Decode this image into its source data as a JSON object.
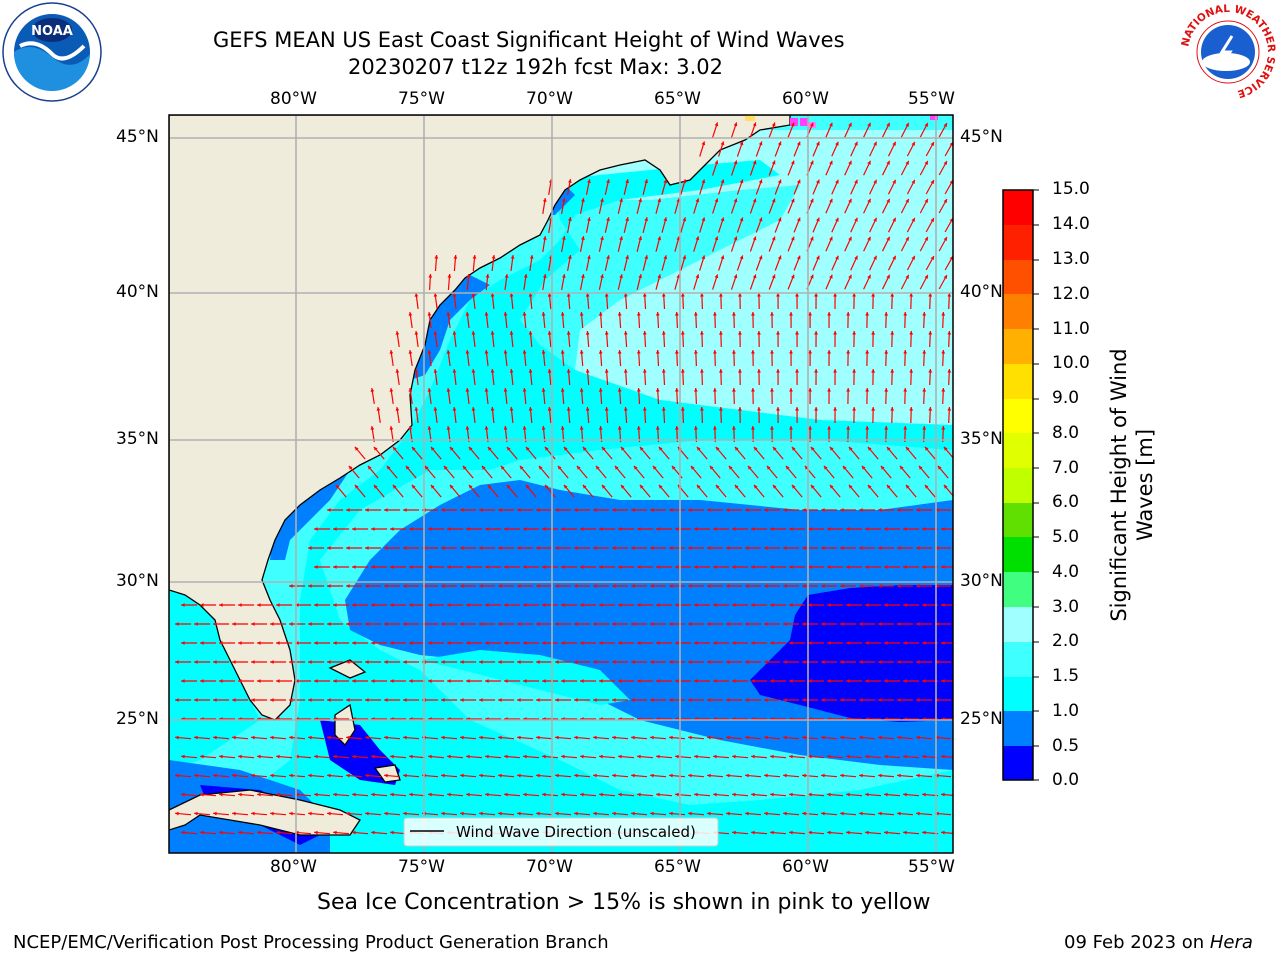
{
  "header": {
    "title_line1": "GEFS MEAN US East Coast Significant Height of Wind Waves",
    "title_line2": "20230207 t12z 192h fcst   Max: 3.02"
  },
  "logos": {
    "left": {
      "name": "noaa-logo",
      "text": "NOAA"
    },
    "right": {
      "name": "nws-logo",
      "ring_text": "NATIONAL WEATHER SERVICE"
    }
  },
  "map": {
    "lon_labels": [
      "80°W",
      "75°W",
      "70°W",
      "65°W",
      "60°W",
      "55°W"
    ],
    "lat_labels": [
      "45°N",
      "40°N",
      "35°N",
      "30°N",
      "25°N"
    ],
    "extent": {
      "lon_min": -85,
      "lon_max": -54.3,
      "lat_min": 20.6,
      "lat_max": 45.8
    },
    "legend_label": "Wind Wave Direction (unscaled)",
    "arrow_color": "#ff0000",
    "land_color": "#efecdc",
    "gridline_color": "#b0b0b0"
  },
  "colorbar": {
    "label_line1": "Significant Height of Wind",
    "label_line2": "Waves [m]",
    "ticks": [
      "15.0",
      "14.0",
      "13.0",
      "12.0",
      "11.0",
      "10.0",
      "9.0",
      "8.0",
      "7.0",
      "6.0",
      "5.0",
      "4.0",
      "3.0",
      "2.0",
      "1.5",
      "1.0",
      "0.5",
      "0.0"
    ],
    "bands": [
      {
        "from": 0.0,
        "to": 0.5,
        "color": "#0000ff"
      },
      {
        "from": 0.5,
        "to": 1.0,
        "color": "#0080ff"
      },
      {
        "from": 1.0,
        "to": 1.5,
        "color": "#00ffff"
      },
      {
        "from": 1.5,
        "to": 2.0,
        "color": "#40ffff"
      },
      {
        "from": 2.0,
        "to": 3.0,
        "color": "#a0ffff"
      },
      {
        "from": 3.0,
        "to": 4.0,
        "color": "#40ff80"
      },
      {
        "from": 4.0,
        "to": 5.0,
        "color": "#00e000"
      },
      {
        "from": 5.0,
        "to": 6.0,
        "color": "#60e000"
      },
      {
        "from": 6.0,
        "to": 7.0,
        "color": "#c0ff00"
      },
      {
        "from": 7.0,
        "to": 8.0,
        "color": "#e0ff00"
      },
      {
        "from": 8.0,
        "to": 9.0,
        "color": "#ffff00"
      },
      {
        "from": 9.0,
        "to": 10.0,
        "color": "#ffe000"
      },
      {
        "from": 10.0,
        "to": 11.0,
        "color": "#ffb000"
      },
      {
        "from": 11.0,
        "to": 12.0,
        "color": "#ff8000"
      },
      {
        "from": 12.0,
        "to": 13.0,
        "color": "#ff5000"
      },
      {
        "from": 13.0,
        "to": 14.0,
        "color": "#ff2000"
      },
      {
        "from": 14.0,
        "to": 15.0,
        "color": "#ff0000"
      }
    ]
  },
  "notes": {
    "sea_ice": "Sea Ice Concentration > 15% is shown in pink to yellow",
    "footer_left": "NCEP/EMC/Verification Post Processing Product Generation Branch",
    "footer_right_prefix": "09 Feb 2023 on ",
    "footer_right_host": "Hera"
  }
}
